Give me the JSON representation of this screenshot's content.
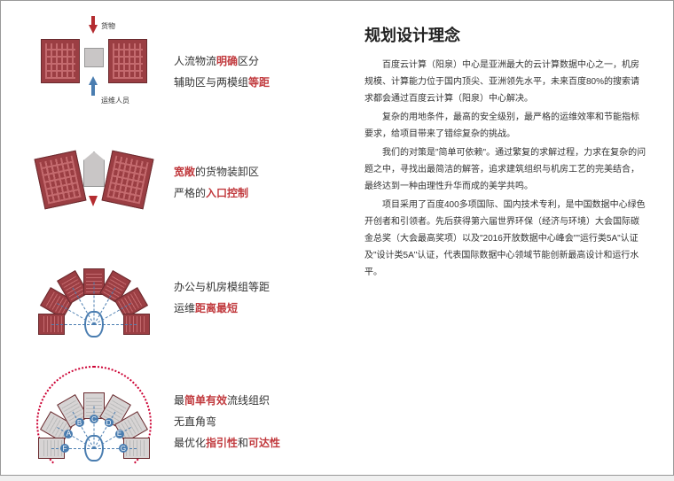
{
  "colors": {
    "red": "#c13a3e",
    "black": "#333333",
    "blue": "#4a7db0",
    "brick": "#9b3e43"
  },
  "d1": {
    "label_top": "货物",
    "label_bottom": "运维人员",
    "captions": [
      {
        "pre": "人流物流",
        "hl": "明确",
        "post": "区分",
        "hlColor": "#c13a3e"
      },
      {
        "pre": "辅助区与两模组",
        "hl": "等距",
        "post": "",
        "hlColor": "#c13a3e"
      }
    ]
  },
  "d2": {
    "captions": [
      {
        "pre": "",
        "hl": "宽敞",
        "post": "的货物装卸区",
        "hlColor": "#c13a3e"
      },
      {
        "pre": "严格的",
        "hl": "入口控制",
        "post": "",
        "hlColor": "#c13a3e"
      }
    ]
  },
  "d3": {
    "captions": [
      {
        "pre": "办公与机房模组等距",
        "hl": "",
        "post": "",
        "hlColor": "#333"
      },
      {
        "pre": "运维",
        "hl": "距离最短",
        "post": "",
        "hlColor": "#c13a3e"
      }
    ],
    "modules": [
      {
        "angle": -150,
        "r": 48
      },
      {
        "angle": -120,
        "r": 48
      },
      {
        "angle": -90,
        "r": 48
      },
      {
        "angle": -60,
        "r": 48
      },
      {
        "angle": -30,
        "r": 48
      },
      {
        "angle": -180,
        "r": 48
      },
      {
        "angle": 0,
        "r": 48
      }
    ]
  },
  "d4": {
    "captions": [
      {
        "pre": "最",
        "hl": "简单有效",
        "post": "流线组织",
        "hlColor": "#c13a3e"
      },
      {
        "pre": "无直角弯",
        "hl": "",
        "post": "",
        "hlColor": "#333"
      },
      {
        "pre": "最优化",
        "hl": "指引性",
        "post": "和",
        "hl2": "可达性",
        "hlColor": "#c13a3e"
      }
    ]
  },
  "title": "规划设计理念",
  "paragraphs": [
    "百度云计算（阳泉）中心是亚洲最大的云计算数据中心之一，机房规模、计算能力位于国内顶尖、亚洲领先水平，未来百度80%的搜索请求都会通过百度云计算（阳泉）中心解决。",
    "复杂的用地条件，最高的安全级别，最严格的运维效率和节能指标要求，给项目带来了错综复杂的挑战。",
    "我们的对策是\"简单可依赖\"。通过繁复的求解过程，力求在复杂的问题之中，寻找出最简洁的解答，追求建筑组织与机房工艺的完美结合，最终达到一种由理性升华而成的美学共鸣。",
    "项目采用了百度400多项国际、国内技术专利，是中国数据中心绿色开创者和引领者。先后获得第六届世界环保（经济与环境）大会国际碳金总奖（大会最高奖项）以及\"2016开放数据中心峰会\"\"运行类5A\"认证及\"设计类5A\"认证，代表国际数据中心领域节能创新最高设计和运行水平。"
  ]
}
